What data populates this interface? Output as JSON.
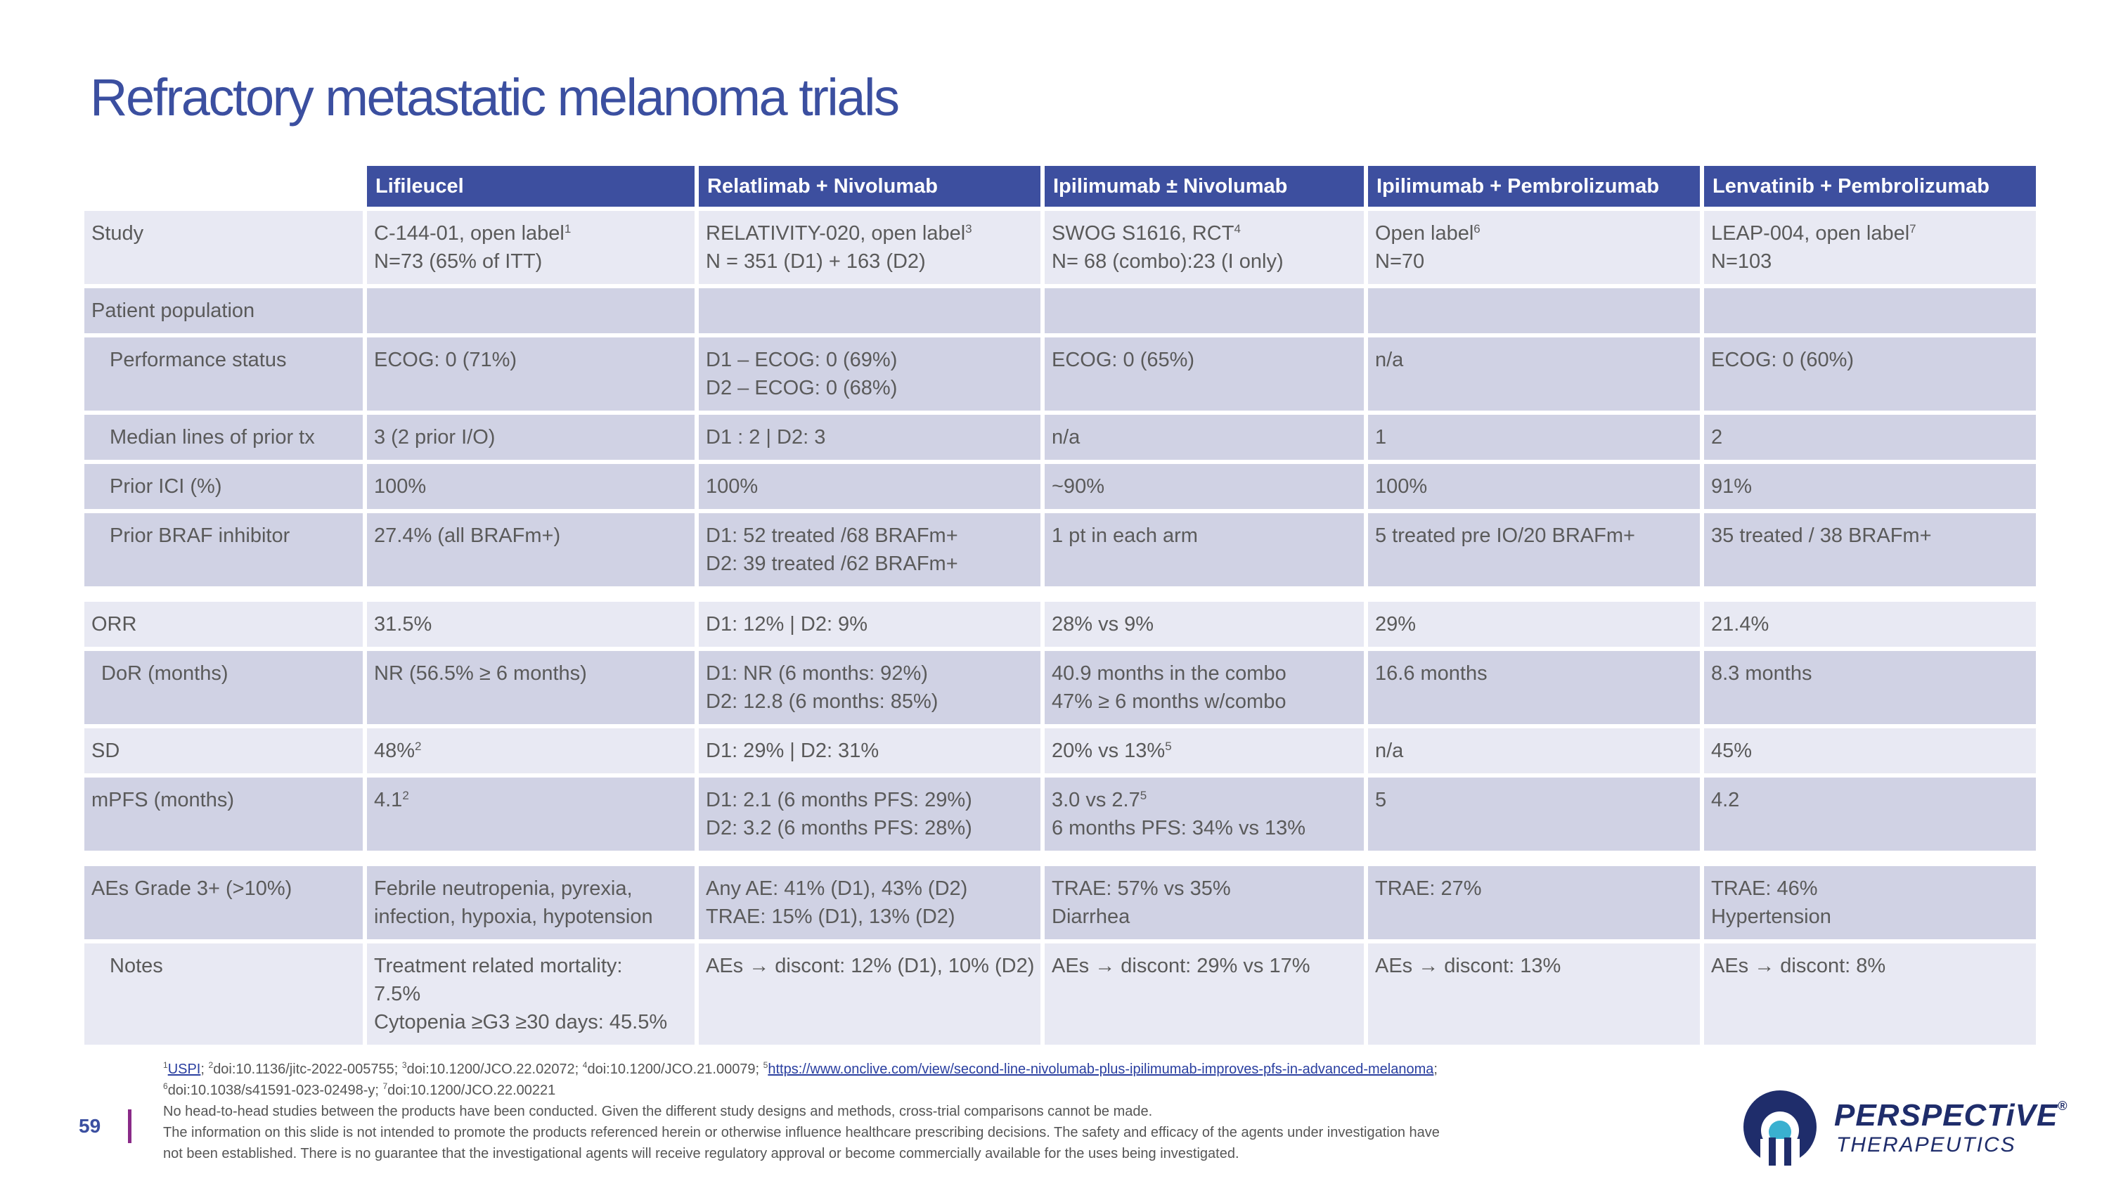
{
  "title": "Refractory metastatic melanoma trials",
  "columns": [
    "Lifileucel",
    "Relatlimab + Nivolumab",
    "Ipilimumab ± Nivolumab",
    "Ipilimumab + Pembrolizumab",
    "Lenvatinib + Pembrolizumab"
  ],
  "rows": {
    "study": {
      "label": "Study",
      "c1": {
        "l1": "C-144-01, open label",
        "s1": "1",
        "l2": "N=73 (65% of ITT)"
      },
      "c2": {
        "l1": "RELATIVITY-020, open label",
        "s1": "3",
        "l2": "N = 351 (D1) + 163 (D2)"
      },
      "c3": {
        "l1": "SWOG S1616, RCT",
        "s1": "4",
        "l2": "N= 68 (combo):23 (I only)"
      },
      "c4": {
        "l1": "Open label",
        "s1": "6",
        "l2": "N=70"
      },
      "c5": {
        "l1": "LEAP-004, open label",
        "s1": "7",
        "l2": "N=103"
      }
    },
    "population": {
      "label": "Patient population"
    },
    "performance": {
      "label": "Performance status",
      "c1": "ECOG: 0 (71%)",
      "c2": {
        "l1": "D1 – ECOG: 0 (69%)",
        "l2": "D2 – ECOG: 0 (68%)"
      },
      "c3": "ECOG: 0 (65%)",
      "c4": "n/a",
      "c5": "ECOG: 0 (60%)"
    },
    "lines": {
      "label": "Median lines of prior tx",
      "c1": "3 (2 prior I/O)",
      "c2": "D1 : 2 | D2: 3",
      "c3": "n/a",
      "c4": "1",
      "c5": "2"
    },
    "ici": {
      "label": "Prior ICI (%)",
      "c1": "100%",
      "c2": "100%",
      "c3": "~90%",
      "c4": "100%",
      "c5": "91%"
    },
    "braf": {
      "label": "Prior BRAF inhibitor",
      "c1": "27.4% (all BRAFm+)",
      "c2": {
        "l1": "D1: 52 treated /68 BRAFm+",
        "l2": "D2: 39 treated /62 BRAFm+"
      },
      "c3": "1 pt in each arm",
      "c4": "5 treated pre IO/20 BRAFm+",
      "c5": "35 treated / 38 BRAFm+"
    },
    "orr": {
      "label": "ORR",
      "c1": "31.5%",
      "c2": "D1: 12% | D2: 9%",
      "c3": "28% vs 9%",
      "c4": "29%",
      "c5": "21.4%"
    },
    "dor": {
      "label": "DoR (months)",
      "c1": "NR (56.5% ≥ 6 months)",
      "c2": {
        "l1": "D1: NR (6 months: 92%)",
        "l2": "D2: 12.8 (6 months: 85%)"
      },
      "c3": {
        "l1": "40.9 months in the combo",
        "l2": "47% ≥ 6 months w/combo"
      },
      "c4": "16.6 months",
      "c5": "8.3 months"
    },
    "sd": {
      "label": "SD",
      "c1": {
        "t": "48%",
        "s": "2"
      },
      "c2": "D1: 29% | D2: 31%",
      "c3": {
        "t": "20% vs 13%",
        "s": "5"
      },
      "c4": "n/a",
      "c5": "45%"
    },
    "mpfs": {
      "label": "mPFS (months)",
      "c1": {
        "t": "4.1",
        "s": "2"
      },
      "c2": {
        "l1": "D1: 2.1 (6 months PFS: 29%)",
        "l2": "D2: 3.2 (6 months PFS: 28%)"
      },
      "c3": {
        "l1": "3.0 vs 2.7",
        "s1": "5",
        "l2": "6 months PFS: 34% vs 13%"
      },
      "c4": "5",
      "c5": "4.2"
    },
    "aes": {
      "label": "AEs Grade 3+ (>10%)",
      "c1": {
        "l1": "Febrile neutropenia, pyrexia,",
        "l2": "infection, hypoxia, hypotension"
      },
      "c2": {
        "l1": "Any AE: 41% (D1), 43% (D2)",
        "l2": "TRAE: 15% (D1), 13% (D2)"
      },
      "c3": {
        "l1": "TRAE: 57% vs 35%",
        "l2": "Diarrhea"
      },
      "c4": "TRAE: 27%",
      "c5": {
        "l1": "TRAE: 46%",
        "l2": "Hypertension"
      }
    },
    "notes": {
      "label": "Notes",
      "c1": {
        "l1": "Treatment related mortality:",
        "l2": "7.5%",
        "l3": "Cytopenia ≥G3 ≥30 days: 45.5%"
      },
      "c2": "AEs → discont: 12% (D1), 10% (D2)",
      "c3": "AEs → discont: 29% vs 17%",
      "c4": "AEs → discont: 13%",
      "c5": "AEs → discont: 8%"
    }
  },
  "footnotes": {
    "r1": {
      "s1": "1",
      "t1": "USPI",
      "t1b": "; ",
      "s2": "2",
      "t2": "doi:10.1136/jitc-2022-005755; ",
      "s3": "3",
      "t3": "doi:10.1200/JCO.22.02072; ",
      "s4": "4",
      "t4": "doi:10.1200/JCO.21.00079; ",
      "s5": "5",
      "link": "https://www.onclive.com/view/second-line-nivolumab-plus-ipilimumab-improves-pfs-in-advanced-melanoma",
      "t5": ";"
    },
    "r2": {
      "s6": "6",
      "t6": "doi:10.1038/s41591-023-02498-y; ",
      "s7": "7",
      "t7": "doi:10.1200/JCO.22.00221"
    },
    "disclaimer1": "No head-to-head studies between the products have been conducted. Given the different study designs and methods, cross-trial comparisons cannot be made.",
    "disclaimer2": "The information on this slide is not intended to promote the products referenced herein or otherwise influence healthcare prescribing decisions. The safety and efficacy of the agents under investigation have",
    "disclaimer3": "not been established. There is no guarantee that the investigational agents will receive regulatory approval or become commercially available for the uses being investigated."
  },
  "page_number": "59",
  "logo": {
    "name": "PERSPECTiVE",
    "reg": "®",
    "sub": "THERAPEUTICS",
    "icon": "perspective-logo-icon",
    "colors": {
      "navy": "#1f2d6b",
      "teal": "#3ab0d0"
    }
  },
  "colors": {
    "title": "#3b4fa0",
    "header": "#3d4f9f",
    "row_light": "#e8e9f3",
    "row_dark": "#d0d2e4",
    "page_bar": "#8a2b88"
  }
}
